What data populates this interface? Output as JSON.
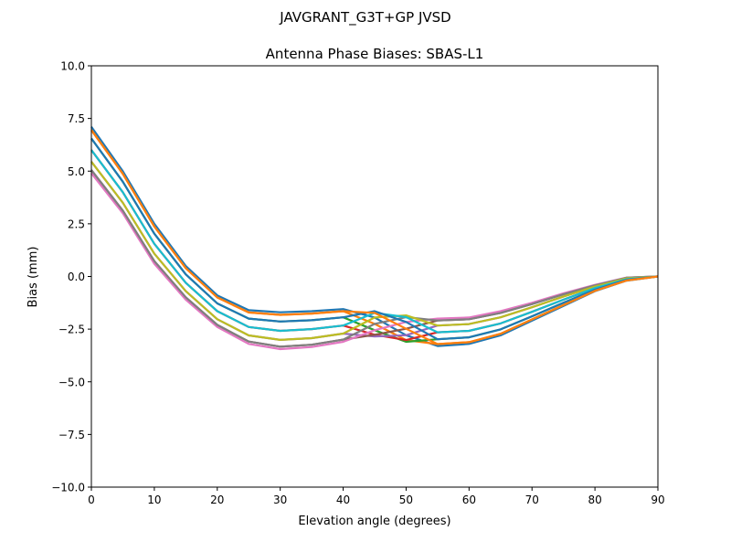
{
  "chart_data": {
    "type": "line",
    "suptitle": "JAVGRANT_G3T+GP JVSD",
    "title": "Antenna Phase Biases: SBAS-L1",
    "xlabel": "Elevation angle (degrees)",
    "ylabel": "Bias (mm)",
    "xlim": [
      0,
      90
    ],
    "ylim": [
      -10,
      10
    ],
    "grid": false,
    "legend": "none",
    "x_ticks": [
      "0",
      "10",
      "20",
      "30",
      "40",
      "50",
      "60",
      "70",
      "80",
      "90"
    ],
    "y_ticks": [
      "10.0",
      "7.5",
      "5.0",
      "2.5",
      "0.0",
      "−2.5",
      "−5.0",
      "−7.5",
      "−10.0"
    ],
    "colors": [
      "#1f77b4",
      "#ff7f0e",
      "#2ca02c",
      "#d62728",
      "#9467bd",
      "#8c564b",
      "#e377c2",
      "#7f7f7f",
      "#bcbd22",
      "#17becf"
    ],
    "x": [
      0,
      5,
      10,
      15,
      20,
      25,
      30,
      35,
      40,
      45,
      50,
      55,
      60,
      65,
      70,
      75,
      80,
      85,
      90
    ],
    "series": [
      {
        "values": [
          7.1,
          5.0,
          2.5,
          0.5,
          -0.9,
          -1.6,
          -1.7,
          -1.65,
          -1.55,
          -1.95,
          -2.79,
          -3.3,
          -3.2,
          -2.8,
          -2.1,
          -1.4,
          -0.7,
          -0.2,
          0
        ]
      },
      {
        "values": [
          6.95,
          4.87,
          2.37,
          0.39,
          -1.0,
          -1.71,
          -1.82,
          -1.76,
          -1.65,
          -2.25,
          -3.02,
          -3.21,
          -3.12,
          -2.72,
          -2.04,
          -1.36,
          -0.68,
          -0.19,
          0
        ]
      },
      {
        "values": [
          6.55,
          4.5,
          2.03,
          0.1,
          -1.28,
          -2.0,
          -2.14,
          -2.08,
          -1.94,
          -2.55,
          -3.1,
          -2.98,
          -2.89,
          -2.51,
          -1.89,
          -1.25,
          -0.63,
          -0.16,
          0
        ]
      },
      {
        "values": [
          6.0,
          4.0,
          1.55,
          -0.3,
          -1.65,
          -2.4,
          -2.58,
          -2.5,
          -2.33,
          -2.77,
          -3.02,
          -2.65,
          -2.58,
          -2.23,
          -1.68,
          -1.1,
          -0.55,
          -0.13,
          0
        ]
      },
      {
        "values": [
          5.45,
          3.5,
          1.08,
          -0.7,
          -2.03,
          -2.8,
          -3.01,
          -2.93,
          -2.71,
          -2.85,
          -2.79,
          -2.33,
          -2.26,
          -1.94,
          -1.46,
          -0.95,
          -0.48,
          -0.09,
          0
        ]
      },
      {
        "values": [
          5.05,
          3.13,
          0.73,
          -0.99,
          -2.3,
          -3.09,
          -3.33,
          -3.24,
          -3.0,
          -2.77,
          -2.48,
          -2.09,
          -2.03,
          -1.73,
          -1.31,
          -0.84,
          -0.42,
          -0.06,
          0
        ]
      },
      {
        "values": [
          4.9,
          3.0,
          0.6,
          -1.1,
          -2.4,
          -3.2,
          -3.45,
          -3.35,
          -3.1,
          -2.55,
          -2.16,
          -2.0,
          -1.95,
          -1.65,
          -1.25,
          -0.8,
          -0.4,
          -0.05,
          0
        ]
      },
      {
        "values": [
          5.05,
          3.13,
          0.73,
          -0.99,
          -2.3,
          -3.09,
          -3.33,
          -3.24,
          -3.0,
          -2.25,
          -1.93,
          -2.09,
          -2.03,
          -1.73,
          -1.31,
          -0.84,
          -0.42,
          -0.06,
          0
        ]
      },
      {
        "values": [
          5.45,
          3.5,
          1.08,
          -0.7,
          -2.03,
          -2.8,
          -3.01,
          -2.93,
          -2.71,
          -1.95,
          -1.85,
          -2.33,
          -2.26,
          -1.94,
          -1.46,
          -0.95,
          -0.48,
          -0.09,
          0
        ]
      },
      {
        "values": [
          6.0,
          4.0,
          1.55,
          -0.3,
          -1.65,
          -2.4,
          -2.58,
          -2.5,
          -2.33,
          -1.73,
          -1.93,
          -2.65,
          -2.58,
          -2.23,
          -1.68,
          -1.1,
          -0.55,
          -0.13,
          0
        ]
      },
      {
        "values": [
          6.55,
          4.5,
          2.03,
          0.1,
          -1.28,
          -2.0,
          -2.14,
          -2.08,
          -1.94,
          -1.65,
          -2.16,
          -2.98,
          -2.89,
          -2.51,
          -1.89,
          -1.25,
          -0.63,
          -0.16,
          0
        ]
      },
      {
        "values": [
          6.95,
          4.87,
          2.37,
          0.39,
          -1.0,
          -1.71,
          -1.82,
          -1.76,
          -1.65,
          -1.73,
          -2.48,
          -3.21,
          -3.12,
          -2.72,
          -2.04,
          -1.36,
          -0.68,
          -0.19,
          0
        ]
      }
    ]
  }
}
